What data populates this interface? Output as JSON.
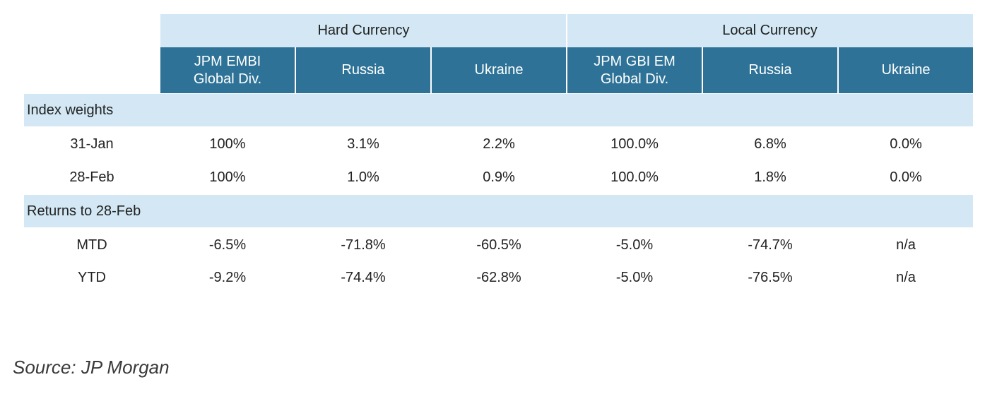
{
  "table": {
    "group_headers": [
      "Hard Currency",
      "Local Currency"
    ],
    "column_headers": [
      "JPM EMBI\nGlobal Div.",
      "Russia",
      "Ukraine",
      "JPM GBI EM\nGlobal Div.",
      "Russia",
      "Ukraine"
    ],
    "sections": [
      {
        "title": "Index weights",
        "rows": [
          {
            "label": "31-Jan",
            "values": [
              "100%",
              "3.1%",
              "2.2%",
              "100.0%",
              "6.8%",
              "0.0%"
            ]
          },
          {
            "label": "28-Feb",
            "values": [
              "100%",
              "1.0%",
              "0.9%",
              "100.0%",
              "1.8%",
              "0.0%"
            ]
          }
        ]
      },
      {
        "title": "Returns to 28-Feb",
        "rows": [
          {
            "label": "MTD",
            "values": [
              "-6.5%",
              "-71.8%",
              "-60.5%",
              "-5.0%",
              "-74.7%",
              "n/a"
            ]
          },
          {
            "label": "YTD",
            "values": [
              "-9.2%",
              "-74.4%",
              "-62.8%",
              "-5.0%",
              "-76.5%",
              "n/a"
            ]
          }
        ]
      }
    ]
  },
  "source": "Source: JP Morgan",
  "colors": {
    "light_band": "#d3e8f4",
    "header_dark": "#2e7397"
  }
}
